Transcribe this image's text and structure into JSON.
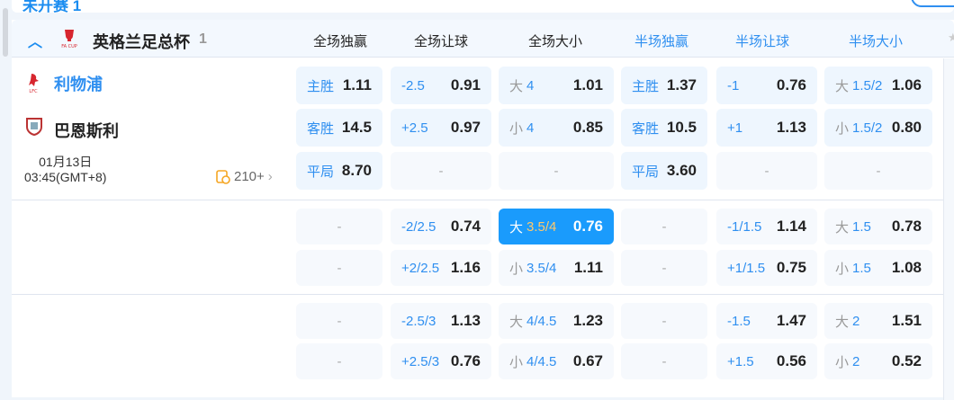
{
  "top": {
    "status_text": "未开赛 1"
  },
  "league": {
    "name": "英格兰足总杯",
    "count": "1"
  },
  "columns": [
    "全场独赢",
    "全场让球",
    "全场大小",
    "半场独赢",
    "半场让球",
    "半场大小"
  ],
  "colors": {
    "accent": "#1a8cf0",
    "highlight": "#1a9bfc",
    "highlight_line": "#ffc86b"
  },
  "match": {
    "home": "利物浦",
    "away": "巴恩斯利",
    "date": "01月13日",
    "time": "03:45(GMT+8)",
    "more_count": "210+"
  },
  "groups": [
    [
      [
        {
          "l": "主胜",
          "v": "1.11"
        },
        {
          "l": "-2.5",
          "v": "0.91"
        },
        {
          "p": "大",
          "l": "4",
          "v": "1.01"
        },
        {
          "l": "主胜",
          "v": "1.37"
        },
        {
          "l": "-1",
          "v": "0.76"
        },
        {
          "p": "大",
          "l": "1.5/2",
          "v": "1.06"
        }
      ],
      [
        {
          "l": "客胜",
          "v": "14.5"
        },
        {
          "l": "+2.5",
          "v": "0.97"
        },
        {
          "p": "小",
          "l": "4",
          "v": "0.85"
        },
        {
          "l": "客胜",
          "v": "10.5"
        },
        {
          "l": "+1",
          "v": "1.13"
        },
        {
          "p": "小",
          "l": "1.5/2",
          "v": "0.80"
        }
      ],
      [
        {
          "l": "平局",
          "v": "8.70"
        },
        {
          "e": "-"
        },
        {
          "e": "-"
        },
        {
          "l": "平局",
          "v": "3.60"
        },
        {
          "e": "-"
        },
        {
          "e": "-"
        }
      ]
    ],
    [
      [
        {
          "e": "-"
        },
        {
          "l": "-2/2.5",
          "v": "0.74"
        },
        {
          "p": "大",
          "l": "3.5/4",
          "v": "0.76",
          "selected": true
        },
        {
          "e": "-"
        },
        {
          "l": "-1/1.5",
          "v": "1.14"
        },
        {
          "p": "大",
          "l": "1.5",
          "v": "0.78"
        }
      ],
      [
        {
          "e": "-"
        },
        {
          "l": "+2/2.5",
          "v": "1.16"
        },
        {
          "p": "小",
          "l": "3.5/4",
          "v": "1.11"
        },
        {
          "e": "-"
        },
        {
          "l": "+1/1.5",
          "v": "0.75"
        },
        {
          "p": "小",
          "l": "1.5",
          "v": "1.08"
        }
      ]
    ],
    [
      [
        {
          "e": "-"
        },
        {
          "l": "-2.5/3",
          "v": "1.13"
        },
        {
          "p": "大",
          "l": "4/4.5",
          "v": "1.23"
        },
        {
          "e": "-"
        },
        {
          "l": "-1.5",
          "v": "1.47"
        },
        {
          "p": "大",
          "l": "2",
          "v": "1.51"
        }
      ],
      [
        {
          "e": "-"
        },
        {
          "l": "+2.5/3",
          "v": "0.76"
        },
        {
          "p": "小",
          "l": "4/4.5",
          "v": "0.67"
        },
        {
          "e": "-"
        },
        {
          "l": "+1.5",
          "v": "0.56"
        },
        {
          "p": "小",
          "l": "2",
          "v": "0.52"
        }
      ]
    ]
  ]
}
